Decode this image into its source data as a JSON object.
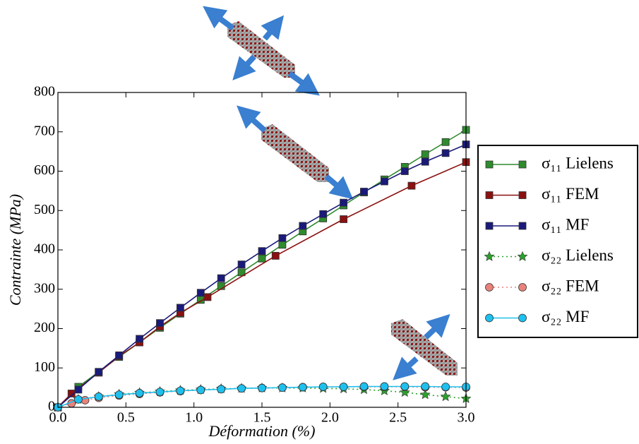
{
  "chart_data": {
    "type": "line",
    "x_label": "Déformation (%)",
    "y_label": "Contrainte (MPa)",
    "xlim": [
      0,
      3
    ],
    "ylim": [
      0,
      800
    ],
    "xticks": [
      {
        "value": 0,
        "label": "0.0"
      },
      0.5,
      {
        "value": 1,
        "label": "1.0"
      },
      1.5,
      {
        "value": 2,
        "label": "2.0"
      },
      2.5,
      {
        "value": 3,
        "label": "3.0"
      }
    ],
    "yticks": [
      0,
      100,
      200,
      300,
      400,
      500,
      600,
      700,
      800
    ],
    "series": [
      {
        "name": "σ₁₁ Lielens",
        "color": "#2e8b2e",
        "marker": "square",
        "dash": "solid",
        "x": [
          0,
          0.15,
          0.3,
          0.45,
          0.6,
          0.75,
          0.9,
          1.05,
          1.2,
          1.35,
          1.5,
          1.65,
          1.8,
          1.95,
          2.1,
          2.25,
          2.4,
          2.55,
          2.7,
          2.85,
          3.0
        ],
        "values": [
          0,
          52,
          90,
          128,
          165,
          202,
          238,
          273,
          308,
          343,
          378,
          413,
          447,
          480,
          513,
          546,
          579,
          611,
          643,
          674,
          705
        ]
      },
      {
        "name": "σ₁₁ FEM",
        "color": "#8b1010",
        "marker": "square",
        "dash": "solid",
        "x": [
          0,
          0.1,
          0.3,
          0.45,
          0.6,
          0.75,
          0.9,
          1.1,
          1.6,
          2.1,
          2.6,
          3.0
        ],
        "values": [
          0,
          35,
          88,
          130,
          165,
          205,
          240,
          280,
          385,
          478,
          563,
          623
        ]
      },
      {
        "name": "σ₁₁ MF",
        "color": "#1a1a7a",
        "marker": "square",
        "dash": "solid",
        "x": [
          0,
          0.15,
          0.3,
          0.45,
          0.6,
          0.75,
          0.9,
          1.05,
          1.2,
          1.35,
          1.5,
          1.65,
          1.8,
          1.95,
          2.1,
          2.25,
          2.4,
          2.55,
          2.7,
          2.85,
          3.0
        ],
        "values": [
          0,
          45,
          90,
          132,
          174,
          214,
          253,
          291,
          328,
          363,
          397,
          430,
          461,
          491,
          520,
          548,
          574,
          600,
          624,
          646,
          668
        ]
      },
      {
        "name": "σ₂₂ Lielens",
        "color": "#2ca02c",
        "marker": "star",
        "dash": "dotted",
        "x": [
          0,
          0.15,
          0.3,
          0.45,
          0.6,
          0.75,
          0.9,
          1.05,
          1.2,
          1.35,
          1.5,
          1.65,
          1.8,
          1.95,
          2.1,
          2.25,
          2.4,
          2.55,
          2.7,
          2.85,
          3.0
        ],
        "values": [
          0,
          20,
          27,
          33,
          37,
          40,
          43,
          45,
          47,
          48,
          49,
          49,
          49,
          48,
          47,
          45,
          42,
          38,
          32,
          27,
          22
        ]
      },
      {
        "name": "σ₂₂ FEM",
        "color": "#e9827a",
        "marker": "circle",
        "dash": "dotted",
        "x": [
          0,
          0.1,
          0.2,
          0.3,
          0.45,
          0.6,
          0.75,
          0.9,
          1.05,
          1.2,
          1.35,
          1.5,
          1.65,
          1.8,
          1.95,
          2.1,
          2.25,
          2.4,
          2.55,
          2.7,
          2.85,
          3.0
        ],
        "values": [
          0,
          10,
          18,
          24,
          30,
          34,
          38,
          41,
          44,
          46,
          48,
          49,
          50,
          51,
          52,
          52,
          52,
          52,
          52,
          51,
          51,
          50
        ]
      },
      {
        "name": "σ₂₂ MF",
        "color": "#1ec0ee",
        "marker": "circle",
        "dash": "solid",
        "x": [
          0,
          0.15,
          0.3,
          0.45,
          0.6,
          0.75,
          0.9,
          1.05,
          1.2,
          1.35,
          1.5,
          1.65,
          1.8,
          1.95,
          2.1,
          2.25,
          2.4,
          2.55,
          2.7,
          2.85,
          3.0
        ],
        "values": [
          0,
          20,
          27,
          32,
          36,
          39,
          42,
          44,
          46,
          48,
          49,
          50,
          51,
          52,
          52,
          53,
          53,
          53,
          53,
          52,
          52
        ]
      }
    ]
  }
}
